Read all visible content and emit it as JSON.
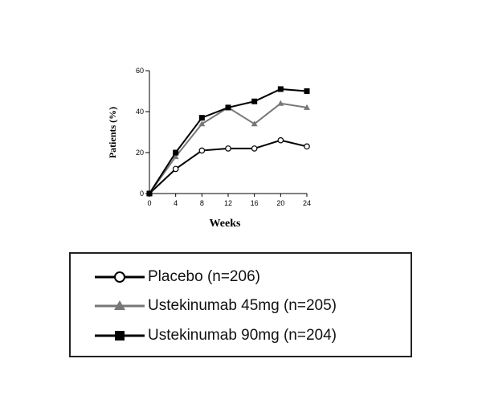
{
  "chart_data": {
    "type": "line",
    "title": "",
    "xlabel": "Weeks",
    "ylabel": "Patients (%)",
    "x": [
      0,
      4,
      8,
      12,
      16,
      20,
      24
    ],
    "xticks": [
      "0",
      "4",
      "8",
      "12",
      "16",
      "20",
      "24"
    ],
    "yticks": [
      "0",
      "20",
      "40",
      "60"
    ],
    "xlim": [
      0,
      24
    ],
    "ylim": [
      0,
      60
    ],
    "grid": false,
    "legend_position": "below",
    "series": [
      {
        "name": "Placebo (n=206)",
        "values": [
          0,
          12,
          21,
          22,
          22,
          26,
          23
        ],
        "color": "#000000",
        "marker": "open-circle"
      },
      {
        "name": "Ustekinumab 45mg (n=205)",
        "values": [
          0,
          18,
          34,
          42,
          34,
          44,
          42
        ],
        "color": "#777777",
        "marker": "triangle"
      },
      {
        "name": "Ustekinumab 90mg (n=204)",
        "values": [
          0,
          20,
          37,
          42,
          45,
          51,
          50
        ],
        "color": "#000000",
        "marker": "square"
      }
    ]
  }
}
